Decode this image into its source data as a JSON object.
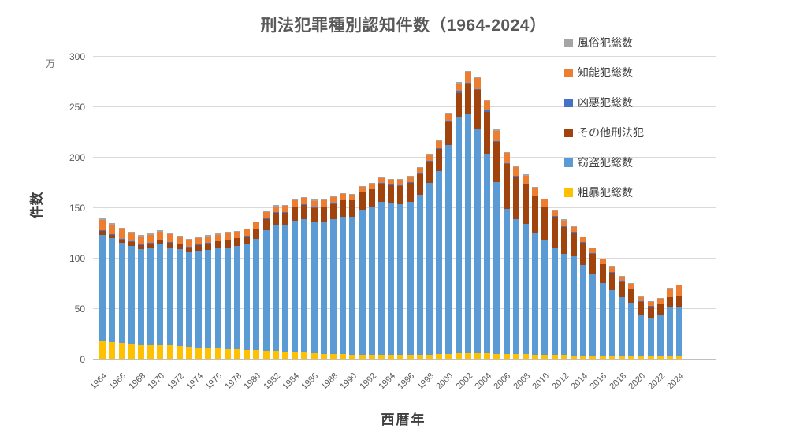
{
  "chart_data": {
    "type": "bar",
    "variant": "stacked-column",
    "title": "刑法犯罪種別認知件数（1964-2024）",
    "xlabel": "西暦年",
    "ylabel": "件数",
    "y_unit": "万",
    "ylim": [
      0,
      300
    ],
    "yticks": [
      0,
      50,
      100,
      150,
      200,
      250,
      300
    ],
    "grid": true,
    "x_tick_step": 2,
    "x": [
      1964,
      1965,
      1966,
      1967,
      1968,
      1969,
      1970,
      1971,
      1972,
      1973,
      1974,
      1975,
      1976,
      1977,
      1978,
      1979,
      1980,
      1981,
      1982,
      1983,
      1984,
      1985,
      1986,
      1987,
      1988,
      1989,
      1990,
      1991,
      1992,
      1993,
      1994,
      1995,
      1996,
      1997,
      1998,
      1999,
      2000,
      2001,
      2002,
      2003,
      2004,
      2005,
      2006,
      2007,
      2008,
      2009,
      2010,
      2011,
      2012,
      2013,
      2014,
      2015,
      2016,
      2017,
      2018,
      2019,
      2020,
      2021,
      2022,
      2023,
      2024
    ],
    "stack_order_note": "series listed bottom-to-top of stack",
    "series": [
      {
        "name": "粗暴犯総数",
        "color": "#ffc000",
        "values": [
          17,
          16.5,
          15.5,
          15,
          14,
          13.5,
          13.5,
          13,
          12.5,
          12,
          11,
          10.5,
          10,
          9.5,
          9,
          8.5,
          8.5,
          8,
          7.5,
          7,
          6.5,
          6,
          5.5,
          5,
          4.8,
          4.5,
          4.2,
          4,
          3.8,
          3.7,
          3.6,
          3.6,
          3.7,
          3.9,
          4.2,
          4.5,
          5,
          5.2,
          5.3,
          5.4,
          5.2,
          5,
          4.8,
          4.6,
          4.4,
          4.2,
          4,
          3.8,
          3.6,
          3.4,
          3.2,
          3,
          2.8,
          2.7,
          2.6,
          2.5,
          2.3,
          2.2,
          2.4,
          2.9,
          3.1
        ]
      },
      {
        "name": "窃盗犯総数",
        "color": "#5b9bd5",
        "values": [
          106,
          103,
          99.5,
          97,
          94.5,
          96.5,
          99.5,
          97.5,
          96,
          93.5,
          96,
          97.5,
          99.5,
          101,
          102.5,
          104.5,
          110.5,
          119.5,
          125,
          125.5,
          130.5,
          132.5,
          130,
          131,
          133.5,
          136.5,
          136.5,
          143.5,
          146,
          151.5,
          150,
          149.5,
          151.5,
          159,
          170,
          181.5,
          206.5,
          234,
          237.5,
          223,
          198,
          170,
          143.5,
          134,
          129.5,
          121,
          114,
          106.5,
          100,
          98,
          90,
          80.7,
          72.3,
          65.5,
          58.2,
          53.2,
          41.7,
          38.1,
          40.8,
          48.3,
          48
        ]
      },
      {
        "name": "その他刑法犯",
        "color": "#a1430d",
        "values": [
          3.6,
          3.2,
          3.3,
          3.4,
          3.9,
          4.1,
          4.1,
          4.6,
          4.7,
          4.8,
          5.5,
          6.4,
          6.6,
          7.2,
          7.7,
          8.4,
          9.4,
          10.9,
          11.9,
          12.2,
          12.9,
          13.9,
          14,
          14.2,
          15.2,
          15.8,
          16,
          17,
          17.9,
          18.5,
          18.6,
          18.4,
          19,
          19.9,
          21.2,
          21.8,
          23.1,
          24.2,
          29.7,
          37.7,
          41.4,
          39.7,
          44.6,
          41.5,
          38.8,
          35.7,
          32.3,
          30,
          27.2,
          23.5,
          21.4,
          20,
          18.3,
          17.2,
          15.2,
          13.5,
          12.4,
          11.5,
          10.5,
          9.4,
          10.7
        ]
      },
      {
        "name": "凶悪犯総数",
        "color": "#4472c4",
        "values": [
          0.9,
          0.9,
          0.8,
          0.8,
          0.8,
          0.7,
          0.7,
          0.7,
          0.7,
          0.6,
          0.6,
          0.6,
          0.6,
          0.6,
          0.6,
          0.6,
          0.6,
          0.6,
          0.6,
          0.6,
          0.6,
          0.6,
          0.6,
          0.6,
          0.6,
          0.5,
          0.5,
          0.5,
          0.5,
          0.5,
          0.5,
          0.5,
          0.5,
          0.6,
          0.7,
          0.8,
          1,
          1.1,
          1.3,
          1.4,
          1.4,
          1.3,
          1.1,
          1,
          0.9,
          0.9,
          0.8,
          0.8,
          0.8,
          0.7,
          0.7,
          0.7,
          0.6,
          0.6,
          0.6,
          0.6,
          0.5,
          0.5,
          0.6,
          0.7,
          0.7
        ]
      },
      {
        "name": "知能犯総数",
        "color": "#ed7d31",
        "values": [
          10,
          9.5,
          9,
          8.5,
          8,
          8,
          8,
          7.5,
          7,
          7,
          6.8,
          6.5,
          6.3,
          6.2,
          6.2,
          6,
          6,
          6,
          6,
          6.2,
          6.5,
          6.5,
          6.5,
          6.3,
          6,
          5.8,
          5.5,
          5.2,
          5,
          5,
          5,
          5.2,
          5.5,
          5.8,
          6.5,
          7,
          7.5,
          8.5,
          10.6,
          10.5,
          9.5,
          10,
          10,
          9,
          8,
          7.3,
          6.5,
          6,
          5.5,
          5,
          4.8,
          4.7,
          4.6,
          4.6,
          4.5,
          4.4,
          3.8,
          3.9,
          4.8,
          8,
          10.2
        ]
      },
      {
        "name": "風俗犯総数",
        "color": "#a5a5a5",
        "values": [
          1.5,
          1.4,
          1.4,
          1.3,
          1.3,
          1.2,
          1.2,
          1.2,
          1.1,
          1.1,
          1.1,
          1,
          1,
          1,
          1,
          1,
          1,
          1,
          1,
          1,
          1,
          1,
          0.9,
          0.9,
          0.9,
          0.9,
          0.8,
          0.8,
          0.8,
          0.8,
          0.8,
          0.8,
          0.8,
          0.8,
          0.9,
          0.9,
          0.9,
          1,
          1,
          1,
          1,
          1,
          1,
          0.9,
          0.9,
          0.9,
          0.9,
          0.9,
          0.9,
          0.9,
          0.9,
          0.9,
          0.9,
          0.9,
          0.9,
          0.8,
          0.8,
          0.8,
          0.9,
          1,
          1
        ]
      }
    ],
    "legend": {
      "position": "right",
      "order": [
        "風俗犯総数",
        "知能犯総数",
        "凶悪犯総数",
        "その他刑法犯",
        "窃盗犯総数",
        "粗暴犯総数"
      ]
    }
  }
}
